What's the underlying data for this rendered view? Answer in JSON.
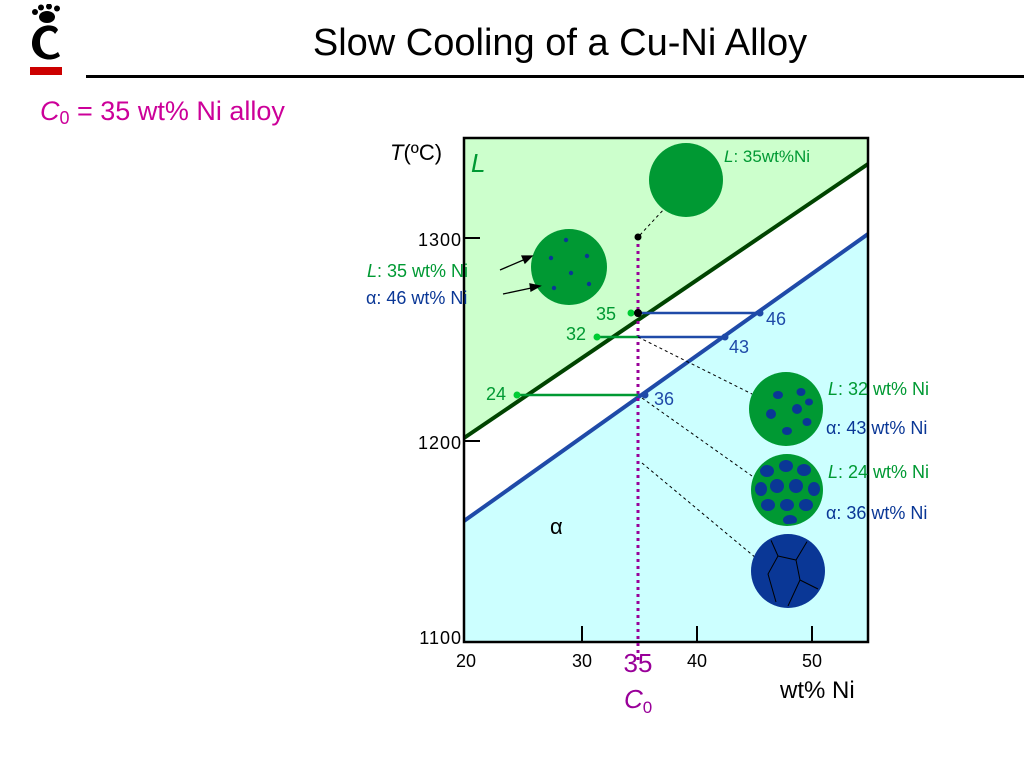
{
  "header": {
    "title": "Slow Cooling of a Cu-Ni Alloy",
    "subtitle_var": "C",
    "subtitle_sub": "0",
    "subtitle_rest": " = 35 wt% Ni alloy"
  },
  "colors": {
    "liquid_region": "#ccffcc",
    "solid_region": "#ccffff",
    "liquidus": "#004400",
    "solidus": "#1f4aa8",
    "liquid_phase": "#009933",
    "alpha_phase": "#0a3796",
    "composition_line": "#990099",
    "logo_red": "#cc0000"
  },
  "axes": {
    "y_label_var": "T",
    "y_label_unit": "(ºC)",
    "y_ticks": [
      "1300",
      "1200",
      "1100"
    ],
    "x_ticks": [
      "20",
      "30",
      "40",
      "50"
    ],
    "x_label": "wt% Ni",
    "c0_value": "35",
    "c0_var": "C",
    "c0_sub": "0"
  },
  "regions": {
    "liquid": "L",
    "alpha": "α"
  },
  "tie_lines": {
    "t1": {
      "left": "35",
      "right": "46"
    },
    "t2": {
      "left": "32",
      "right": "43"
    },
    "t3": {
      "left": "24",
      "right": "36"
    }
  },
  "labels": {
    "s0": {
      "L": "L",
      "text": ": 35wt%Ni"
    },
    "s1_liquid": {
      "L": "L",
      "text": ": 35 wt% Ni"
    },
    "s1_alpha": {
      "a": "α",
      "text": ": 46 wt% Ni"
    },
    "s2_liquid": {
      "L": "L",
      "text": ": 32 wt% Ni"
    },
    "s2_alpha": {
      "a": "α",
      "text": ": 43 wt% Ni"
    },
    "s3_liquid": {
      "L": "L",
      "text": ": 24 wt% Ni"
    },
    "s3_alpha": {
      "a": "α",
      "text": ": 36 wt% Ni"
    }
  }
}
